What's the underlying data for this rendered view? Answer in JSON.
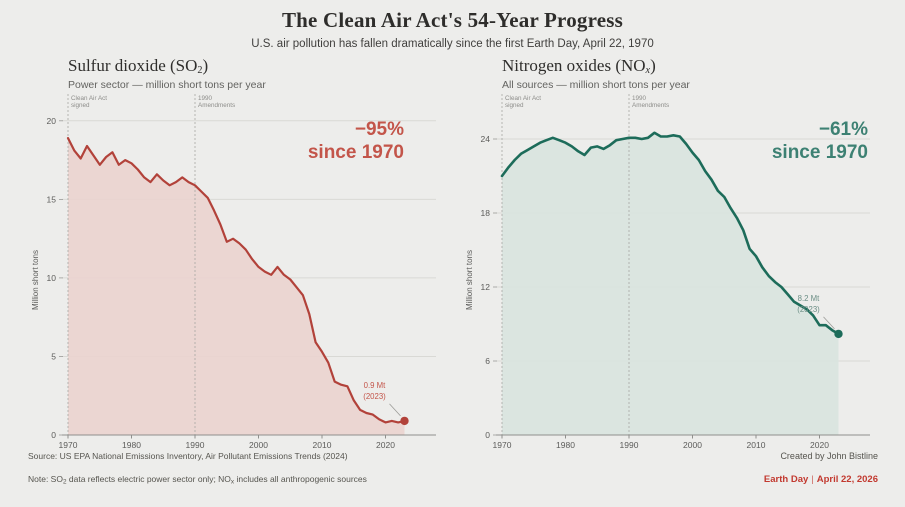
{
  "header": {
    "title": "The Clean Air Act's 54-Year Progress",
    "subtitle": "U.S. air pollution has fallen dramatically since the first Earth Day, April 22, 1970"
  },
  "chart_data": [
    {
      "type": "area",
      "title": "Sulfur dioxide (SO₂)",
      "title_parts": [
        "Sulfur dioxide (SO",
        "2",
        ")"
      ],
      "subtitle": "Power sector — million short tons per year",
      "ylabel": "Million short tons",
      "x_range": [
        1970,
        2023
      ],
      "frequency": "annual",
      "values": [
        18.9,
        18.1,
        17.6,
        18.4,
        17.8,
        17.2,
        17.7,
        18.0,
        17.2,
        17.5,
        17.3,
        16.9,
        16.4,
        16.1,
        16.6,
        16.2,
        15.9,
        16.1,
        16.4,
        16.1,
        15.9,
        15.5,
        15.1,
        14.3,
        13.4,
        12.3,
        12.5,
        12.2,
        11.8,
        11.2,
        10.7,
        10.4,
        10.2,
        10.7,
        10.2,
        9.9,
        9.4,
        8.9,
        7.7,
        5.9,
        5.3,
        4.6,
        3.4,
        3.2,
        3.1,
        2.2,
        1.6,
        1.4,
        1.3,
        1.0,
        0.8,
        0.9,
        0.8,
        0.9
      ],
      "ylim": [
        0,
        21.2
      ],
      "yticks": [
        0,
        5,
        10,
        15,
        20
      ],
      "xticks": [
        1970,
        1980,
        1990,
        2000,
        2010,
        2020
      ],
      "grid": true,
      "line_color": "#b2423a",
      "fill_color": "#ead3cf",
      "accent_color": "#c3554a",
      "line_width": 2.2,
      "change_label": "−95%",
      "change_sublabel": "since 1970",
      "end_annotation": [
        "0.9 Mt",
        "(2023)"
      ],
      "end_annotation_color": "#c3554a",
      "events": [
        {
          "x": 1970,
          "label": [
            "Clean Air Act",
            "signed"
          ]
        },
        {
          "x": 1990,
          "label": [
            "1990",
            "Amendments"
          ]
        }
      ]
    },
    {
      "type": "area",
      "title": "Nitrogen oxides (NOₓ)",
      "title_parts": [
        "Nitrogen oxides (NO",
        "x",
        ")"
      ],
      "subtitle": "All sources — million short tons per year",
      "ylabel": "Million short tons",
      "x_range": [
        1970,
        2023
      ],
      "frequency": "annual",
      "values": [
        21.0,
        21.7,
        22.3,
        22.8,
        23.1,
        23.4,
        23.7,
        23.9,
        24.1,
        23.9,
        23.7,
        23.4,
        23.0,
        22.7,
        23.3,
        23.4,
        23.2,
        23.5,
        23.9,
        24.0,
        24.1,
        24.1,
        24.0,
        24.1,
        24.5,
        24.2,
        24.2,
        24.3,
        24.2,
        23.6,
        22.9,
        22.3,
        21.4,
        20.7,
        19.8,
        19.3,
        18.4,
        17.6,
        16.6,
        15.1,
        14.5,
        13.6,
        12.9,
        12.4,
        12.0,
        11.4,
        10.8,
        10.5,
        10.2,
        9.7,
        8.9,
        8.9,
        8.5,
        8.2
      ],
      "ylim": [
        0,
        27
      ],
      "yticks": [
        0,
        6,
        12,
        18,
        24
      ],
      "xticks": [
        1970,
        1980,
        1990,
        2000,
        2010,
        2020
      ],
      "grid": true,
      "line_color": "#1d6c5a",
      "fill_color": "#d8e3df",
      "accent_color": "#3d8173",
      "line_width": 2.6,
      "change_label": "−61%",
      "change_sublabel": "since 1970",
      "end_annotation": [
        "8.2 Mt",
        "(2023)"
      ],
      "end_annotation_color": "#6b8e85",
      "events": [
        {
          "x": 1970,
          "label": [
            "Clean Air Act",
            "signed"
          ]
        },
        {
          "x": 1990,
          "label": [
            "1990",
            "Amendments"
          ]
        }
      ]
    }
  ],
  "footer": {
    "source": "Source: US EPA National Emissions Inventory, Air Pollutant Emissions Trends (2024)",
    "credit": "Created by John Bistline",
    "note_parts": [
      "Note: SO",
      "2",
      " data reflects electric power sector only; NO",
      "x",
      " includes all anthropogenic sources"
    ],
    "earth_day_label": "Earth Day",
    "earth_day_sep": "|",
    "earth_day_date": "April 22, 2026",
    "earth_day_color": "#c2392f"
  }
}
